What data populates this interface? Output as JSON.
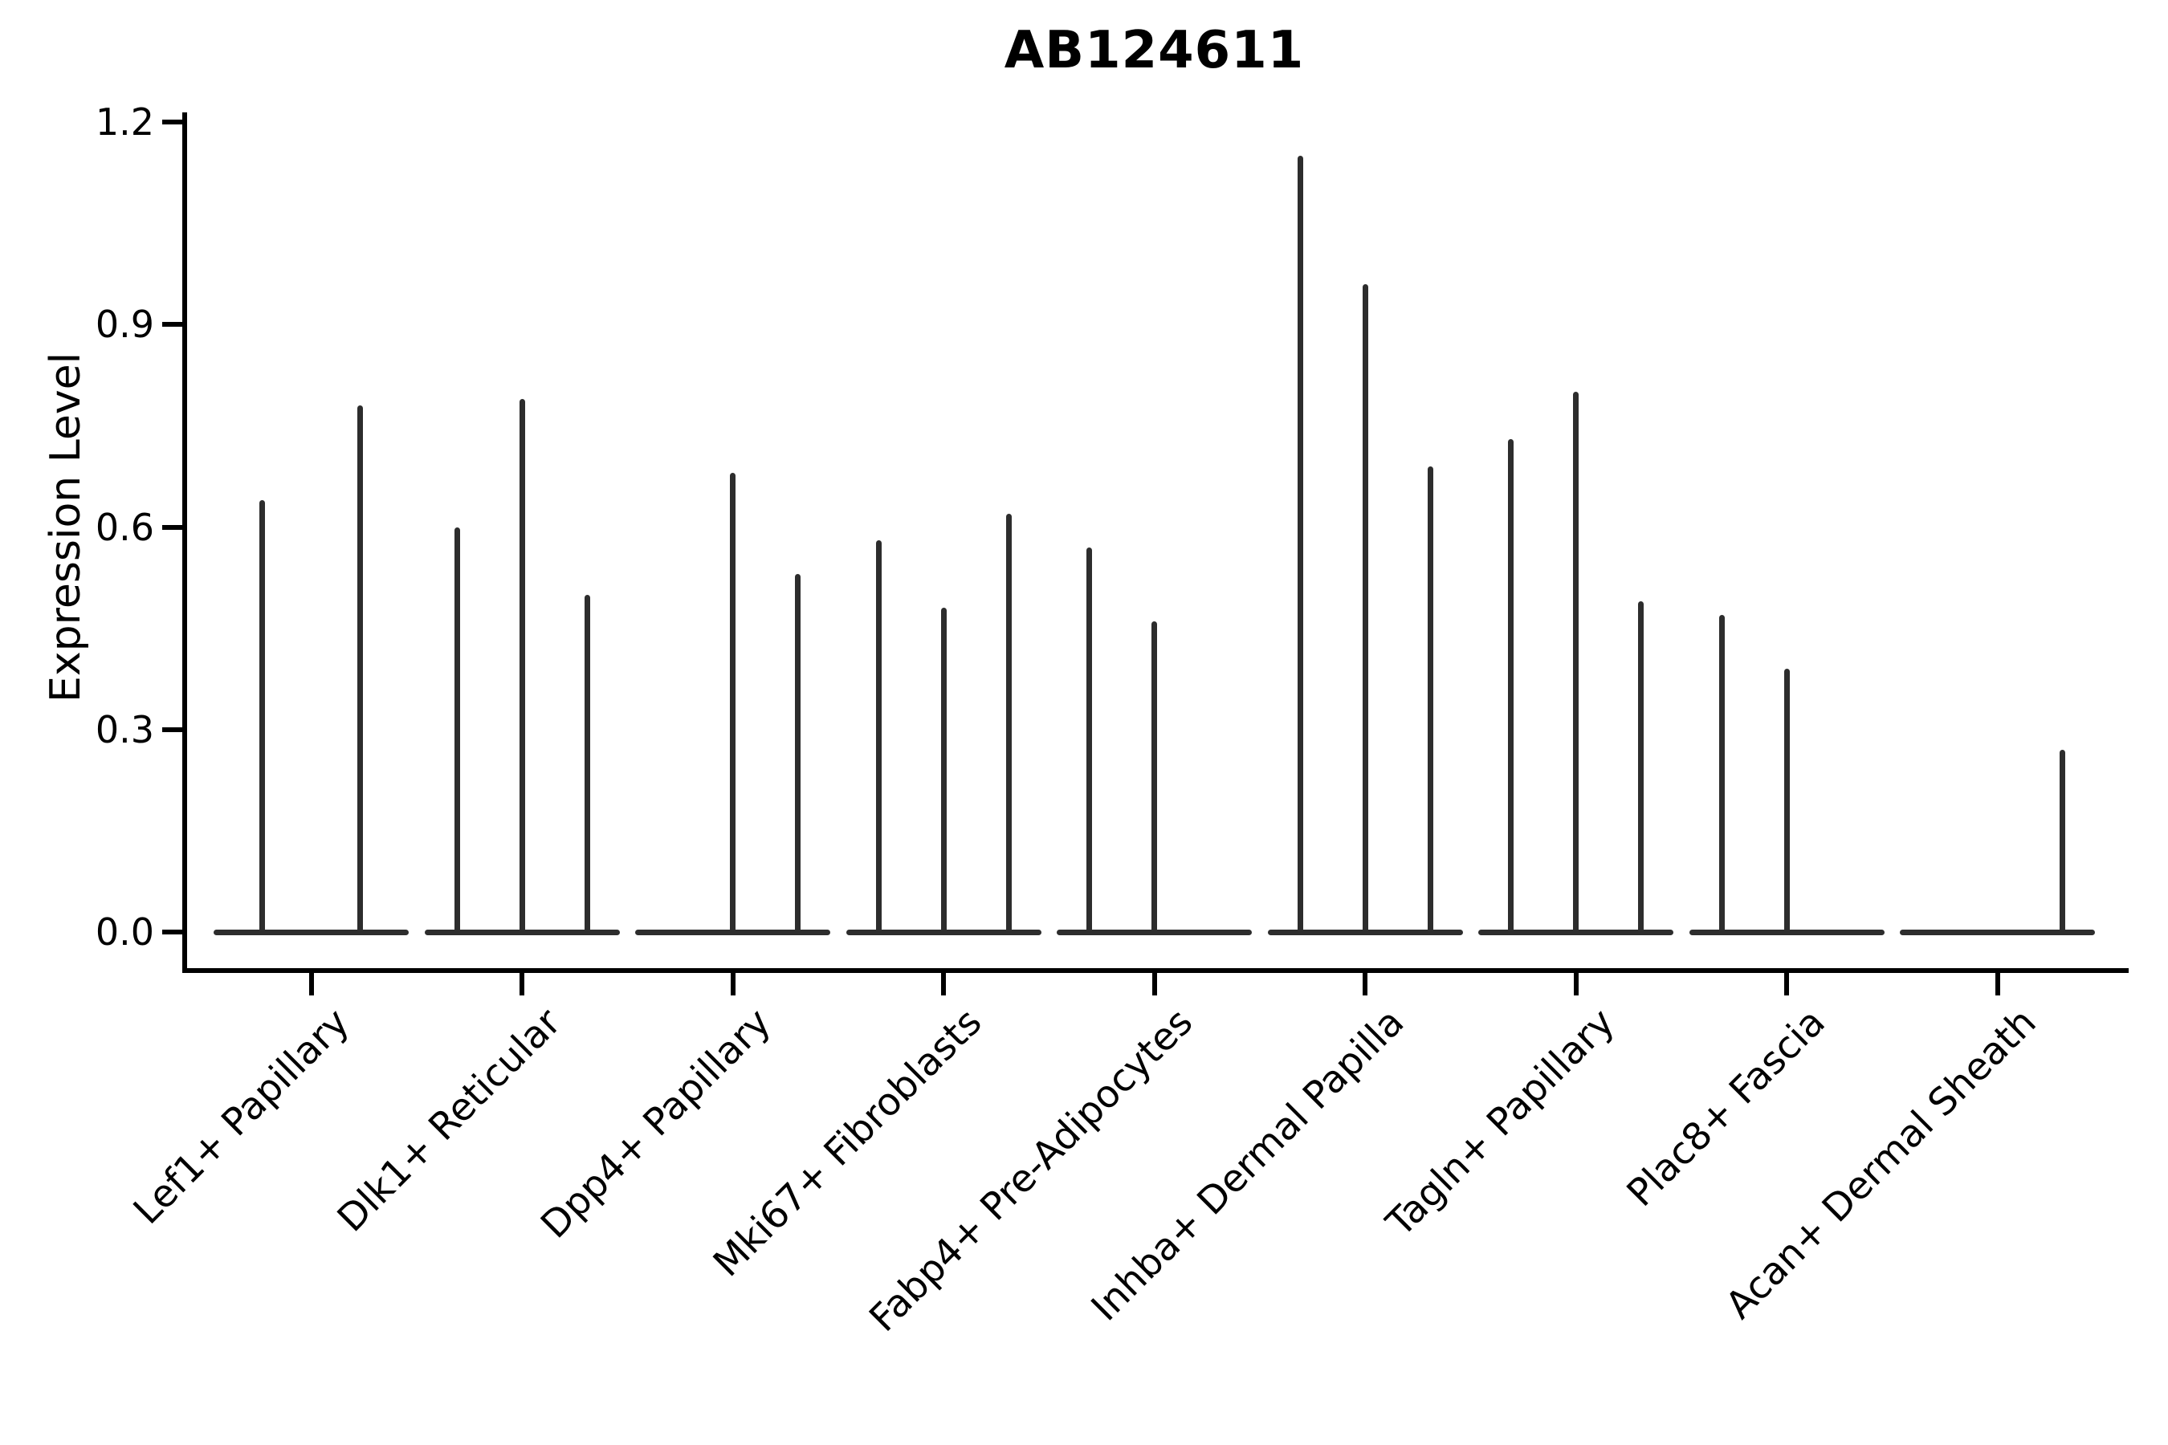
{
  "chart_data": {
    "type": "violin",
    "title": "AB124611",
    "ylabel": "Expression Level",
    "xlabel": "",
    "ylim": [
      0,
      1.2
    ],
    "yticks": [
      0.0,
      0.3,
      0.6,
      0.9,
      1.2
    ],
    "ytick_labels": [
      "0.0",
      "0.3",
      "0.6",
      "0.9",
      "1.2"
    ],
    "grid": false,
    "legend": false,
    "style": "needle-thin violins (near-zero width); each group slot holds evenly spaced violins; zero-expression violins render as a flat baseline segment",
    "categories": [
      "Lef1+ Papillary",
      "Dlk1+ Reticular",
      "Dpp4+ Papillary",
      "Mki67+ Fibroblasts",
      "Fabp4+ Pre-Adipocytes",
      "Inhba+ Dermal Papilla",
      "Tagln+ Papillary",
      "Plac8+ Fascia",
      "Acan+ Dermal Sheath"
    ],
    "groups": [
      {
        "category": "Lef1+ Papillary",
        "violins": [
          0.64,
          0.78
        ]
      },
      {
        "category": "Dlk1+ Reticular",
        "violins": [
          0.6,
          0.79,
          0.5
        ]
      },
      {
        "category": "Dpp4+ Papillary",
        "violins": [
          0,
          0.68,
          0.53
        ]
      },
      {
        "category": "Mki67+ Fibroblasts",
        "violins": [
          0.58,
          0.48,
          0.62
        ]
      },
      {
        "category": "Fabp4+ Pre-Adipocytes",
        "violins": [
          0.57,
          0.46,
          0
        ]
      },
      {
        "category": "Inhba+ Dermal Papilla",
        "violins": [
          1.15,
          0.96,
          0.69
        ]
      },
      {
        "category": "Tagln+ Papillary",
        "violins": [
          0.73,
          0.8,
          0.49
        ]
      },
      {
        "category": "Plac8+ Fascia",
        "violins": [
          0.47,
          0.39,
          0
        ]
      },
      {
        "category": "Acan+ Dermal Sheath",
        "violins": [
          0,
          0,
          0.27
        ]
      }
    ],
    "line_color": "#2d2d2d",
    "axis_color": "#000000",
    "background_color": "#ffffff"
  }
}
